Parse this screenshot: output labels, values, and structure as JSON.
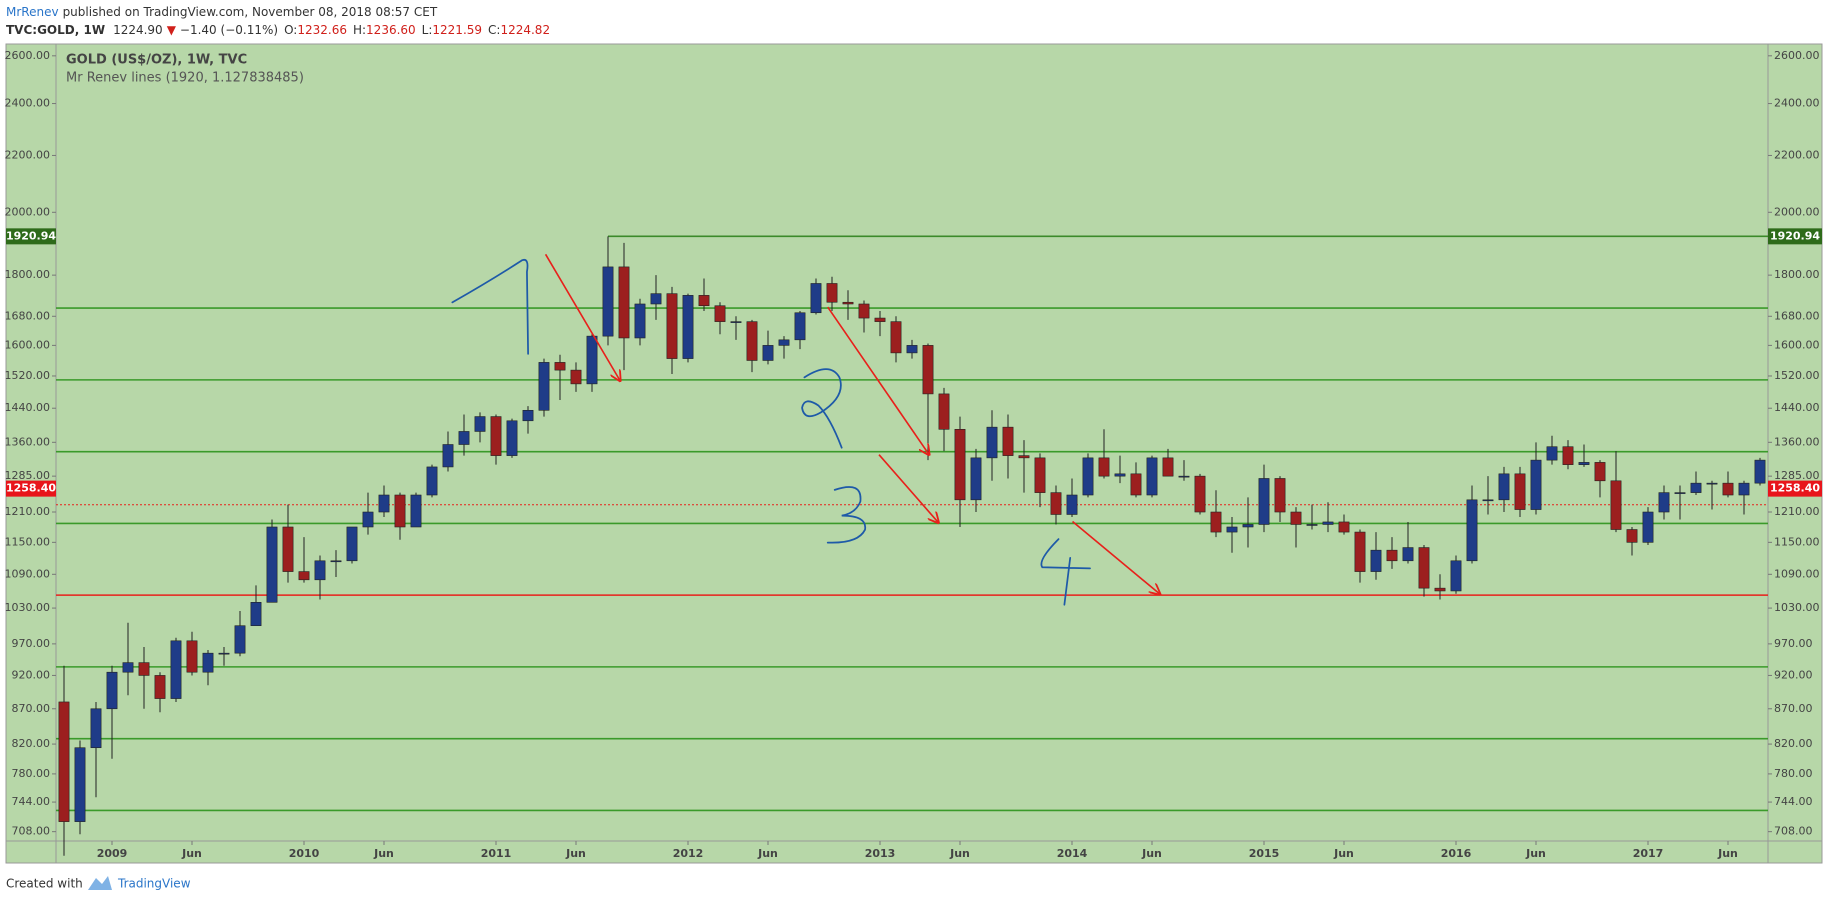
{
  "header": {
    "author": "MrRenev",
    "published": "published on TradingView.com, November 08, 2018 08:57 CET",
    "symbol": "TVC:GOLD, 1W",
    "last": "1224.90",
    "arrow": "▼",
    "change": "−1.40 (−0.11%)",
    "ohlc": [
      {
        "label": "O:",
        "value": "1232.66"
      },
      {
        "label": "H:",
        "value": "1236.60"
      },
      {
        "label": "L:",
        "value": "1221.59"
      },
      {
        "label": "C:",
        "value": "1224.82"
      }
    ]
  },
  "chart_data": {
    "type": "candlestick",
    "title": "GOLD (US$/OZ), 1W, TVC",
    "subtitle": "Mr Renev lines (1920, 1.127838485)",
    "background": "#b7d7a8",
    "up_color": "#1f3c88",
    "down_color": "#9c1f1f",
    "log_scale": true,
    "categories": [
      null,
      null,
      null,
      "2009",
      null,
      null,
      null,
      null,
      "Jun",
      null,
      null,
      null,
      null,
      null,
      null,
      "2010",
      null,
      null,
      null,
      null,
      "Jun",
      null,
      null,
      null,
      null,
      null,
      null,
      "2011",
      null,
      null,
      null,
      null,
      "Jun",
      null,
      null,
      null,
      null,
      null,
      null,
      "2012",
      null,
      null,
      null,
      null,
      "Jun",
      null,
      null,
      null,
      null,
      null,
      null,
      "2013",
      null,
      null,
      null,
      null,
      "Jun",
      null,
      null,
      null,
      null,
      null,
      null,
      "2014",
      null,
      null,
      null,
      null,
      "Jun",
      null,
      null,
      null,
      null,
      null,
      null,
      "2015",
      null,
      null,
      null,
      null,
      "Jun",
      null,
      null,
      null,
      null,
      null,
      null,
      "2016",
      null,
      null,
      null,
      null,
      "Jun",
      null,
      null,
      null,
      null,
      null,
      null,
      "2017",
      null,
      null,
      null,
      null,
      "Jun",
      null,
      null
    ],
    "open": [
      880,
      720,
      815,
      870,
      925,
      940,
      920,
      885,
      975,
      925,
      955,
      955,
      1000,
      1040,
      1180,
      1095,
      1080,
      1115,
      1115,
      1180,
      1210,
      1245,
      1180,
      1245,
      1305,
      1355,
      1385,
      1420,
      1330,
      1410,
      1435,
      1555,
      1535,
      1500,
      1625,
      1825,
      1620,
      1715,
      1745,
      1565,
      1740,
      1710,
      1665,
      1665,
      1560,
      1600,
      1615,
      1690,
      1775,
      1720,
      1715,
      1675,
      1665,
      1580,
      1600,
      1475,
      1390,
      1235,
      1325,
      1395,
      1330,
      1325,
      1250,
      1205,
      1245,
      1325,
      1285,
      1290,
      1245,
      1325,
      1285,
      1285,
      1210,
      1170,
      1180,
      1185,
      1280,
      1210,
      1185,
      1185,
      1190,
      1170,
      1095,
      1135,
      1115,
      1140,
      1065,
      1060,
      1115,
      1235,
      1235,
      1290,
      1215,
      1320,
      1350,
      1310,
      1315,
      1275,
      1175,
      1150,
      1210,
      1250,
      1250,
      1270,
      1270,
      1245,
      1270
    ],
    "high": [
      935,
      825,
      880,
      935,
      1005,
      965,
      925,
      980,
      990,
      960,
      965,
      1025,
      1070,
      1195,
      1225,
      1160,
      1125,
      1135,
      1180,
      1250,
      1265,
      1250,
      1250,
      1310,
      1385,
      1425,
      1430,
      1425,
      1415,
      1445,
      1565,
      1575,
      1555,
      1630,
      1920.94,
      1900,
      1730,
      1800,
      1765,
      1745,
      1790,
      1720,
      1680,
      1670,
      1640,
      1625,
      1695,
      1790,
      1795,
      1755,
      1725,
      1695,
      1680,
      1615,
      1605,
      1490,
      1420,
      1345,
      1435,
      1425,
      1365,
      1335,
      1265,
      1280,
      1335,
      1390,
      1330,
      1315,
      1330,
      1345,
      1320,
      1290,
      1255,
      1200,
      1240,
      1310,
      1285,
      1220,
      1225,
      1230,
      1205,
      1175,
      1170,
      1160,
      1190,
      1145,
      1090,
      1125,
      1265,
      1285,
      1305,
      1305,
      1360,
      1375,
      1365,
      1355,
      1320,
      1340,
      1180,
      1220,
      1265,
      1265,
      1295,
      1275,
      1295,
      1275,
      1325
    ],
    "low": [
      680,
      705,
      750,
      800,
      890,
      870,
      865,
      880,
      920,
      905,
      935,
      950,
      1000,
      1040,
      1075,
      1075,
      1045,
      1085,
      1110,
      1165,
      1200,
      1155,
      1180,
      1240,
      1295,
      1330,
      1360,
      1310,
      1325,
      1380,
      1420,
      1460,
      1480,
      1480,
      1600,
      1535,
      1600,
      1670,
      1525,
      1555,
      1695,
      1630,
      1615,
      1530,
      1550,
      1565,
      1590,
      1685,
      1695,
      1670,
      1635,
      1625,
      1555,
      1565,
      1320,
      1340,
      1180,
      1210,
      1275,
      1280,
      1250,
      1220,
      1185,
      1200,
      1240,
      1280,
      1270,
      1240,
      1240,
      1285,
      1275,
      1205,
      1160,
      1130,
      1140,
      1170,
      1190,
      1140,
      1175,
      1170,
      1165,
      1075,
      1080,
      1100,
      1110,
      1050,
      1045,
      1055,
      1110,
      1205,
      1210,
      1200,
      1205,
      1310,
      1300,
      1305,
      1240,
      1170,
      1125,
      1145,
      1195,
      1195,
      1245,
      1215,
      1240,
      1205,
      1265
    ],
    "close": [
      720,
      815,
      870,
      925,
      940,
      920,
      885,
      975,
      925,
      955,
      955,
      1000,
      1040,
      1180,
      1095,
      1080,
      1115,
      1115,
      1180,
      1210,
      1245,
      1180,
      1245,
      1305,
      1355,
      1385,
      1420,
      1330,
      1410,
      1435,
      1555,
      1535,
      1500,
      1625,
      1825,
      1620,
      1715,
      1745,
      1565,
      1740,
      1710,
      1665,
      1665,
      1560,
      1600,
      1615,
      1690,
      1775,
      1720,
      1715,
      1675,
      1665,
      1580,
      1600,
      1475,
      1390,
      1235,
      1325,
      1395,
      1330,
      1325,
      1250,
      1205,
      1245,
      1325,
      1285,
      1290,
      1245,
      1325,
      1285,
      1285,
      1210,
      1170,
      1180,
      1185,
      1280,
      1210,
      1185,
      1185,
      1190,
      1170,
      1095,
      1135,
      1115,
      1140,
      1065,
      1060,
      1115,
      1235,
      1235,
      1290,
      1215,
      1320,
      1350,
      1310,
      1315,
      1275,
      1175,
      1150,
      1210,
      1250,
      1250,
      1270,
      1270,
      1245,
      1270,
      1320
    ],
    "ylim": [
      697,
      2652
    ],
    "yticks": [
      {
        "value": 2600,
        "label": "2600.00"
      },
      {
        "value": 2400,
        "label": "2400.00"
      },
      {
        "value": 2200,
        "label": "2200.00"
      },
      {
        "value": 2000,
        "label": "2000.00"
      },
      {
        "value": 1800,
        "label": "1800.00"
      },
      {
        "value": 1680,
        "label": "1680.00"
      },
      {
        "value": 1600,
        "label": "1600.00"
      },
      {
        "value": 1520,
        "label": "1520.00"
      },
      {
        "value": 1440,
        "label": "1440.00"
      },
      {
        "value": 1360,
        "label": "1360.00"
      },
      {
        "value": 1285,
        "label": "1285.00"
      },
      {
        "value": 1210,
        "label": "1210.00"
      },
      {
        "value": 1150,
        "label": "1150.00"
      },
      {
        "value": 1090,
        "label": "1090.00"
      },
      {
        "value": 1030,
        "label": "1030.00"
      },
      {
        "value": 970,
        "label": "970.00"
      },
      {
        "value": 920,
        "label": "920.00"
      },
      {
        "value": 870,
        "label": "870.00"
      },
      {
        "value": 820,
        "label": "820.00"
      },
      {
        "value": 780,
        "label": "780.00"
      },
      {
        "value": 744,
        "label": "744.00"
      },
      {
        "value": 708,
        "label": "708.00"
      }
    ],
    "levels": [
      1920.94,
      1703.2,
      1510.1,
      1338.9,
      1187.1,
      1052.6,
      933.3,
      827.5,
      733.7
    ],
    "level_colors": [
      "#3b8a2a",
      "#3a9a2a",
      "#3a9a2a",
      "#3a9a2a",
      "#3a9a2a",
      "#e8201b",
      "#3a9a2a",
      "#3a9a2a",
      "#3a9a2a"
    ],
    "close_line": 1224.82,
    "close_line_color": "#e8201b",
    "tags": [
      {
        "value": 1920.94,
        "label": "1920.94",
        "color": "#2e6b1a"
      },
      {
        "value": 1258.4,
        "label": "1258.40",
        "color": "#e8151b"
      }
    ]
  },
  "footer": {
    "created": "Created with",
    "brand": "TradingView"
  }
}
